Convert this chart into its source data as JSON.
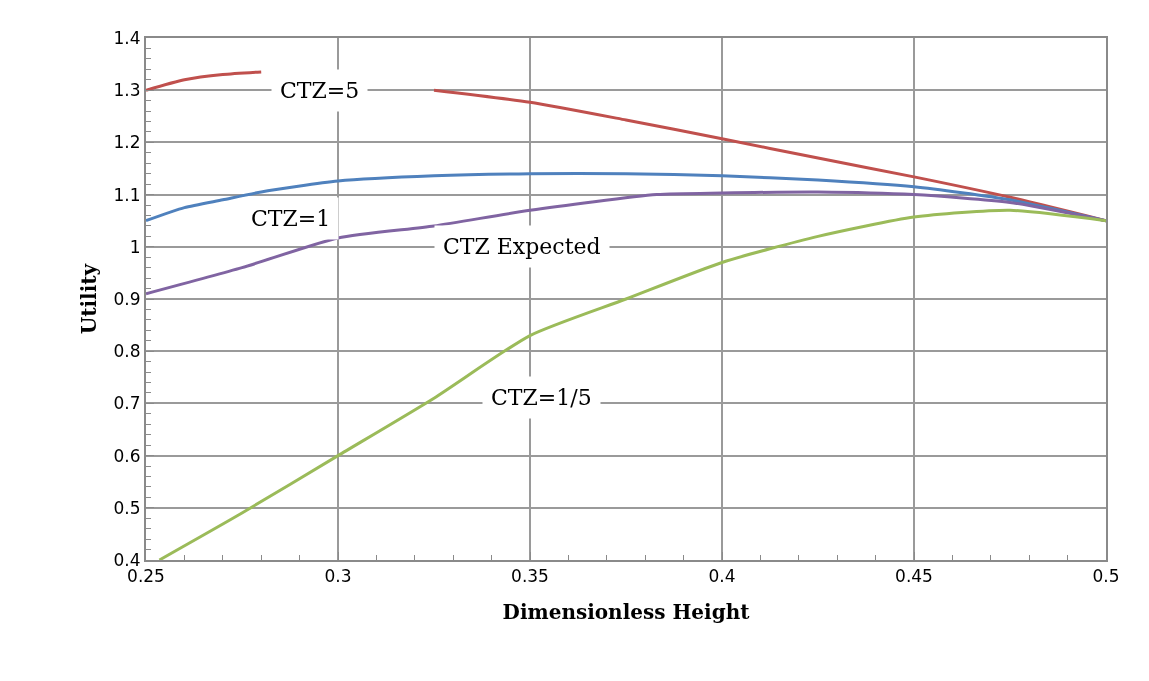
{
  "chart_data": {
    "type": "line",
    "xlabel": "Dimensionless Height",
    "ylabel": "Utility",
    "xlim": [
      0.25,
      0.5
    ],
    "xticks": [
      0.25,
      0.3,
      0.35,
      0.4,
      0.45,
      0.5
    ],
    "ylim": [
      0.4,
      1.4
    ],
    "yticks": [
      0.4,
      {
        "value": 0.5,
        "label": "0.5"
      },
      0.6,
      0.7,
      0.8,
      0.9,
      {
        "value": 1,
        "label": "1"
      },
      1.1,
      1.2,
      1.3,
      1.4
    ],
    "grid": true,
    "legend": false,
    "marker": "none",
    "line_style": "solid",
    "series": [
      {
        "name": "CTZ=5",
        "color": "#c0504d",
        "x": [
          0.25,
          0.26,
          0.27,
          0.28,
          0.3,
          0.325,
          0.35,
          0.375,
          0.4,
          0.425,
          0.45,
          0.475,
          0.5
        ],
        "values": [
          1.3,
          1.32,
          1.33,
          1.335,
          null,
          1.3,
          1.277,
          1.243,
          1.207,
          1.17,
          1.134,
          1.095,
          1.05
        ]
      },
      {
        "name": "CTZ=1",
        "color": "#4f81bd",
        "x": [
          0.25,
          0.26,
          0.27,
          0.28,
          0.3,
          0.325,
          0.35,
          0.375,
          0.4,
          0.425,
          0.45,
          0.475,
          0.5
        ],
        "values": [
          1.05,
          1.075,
          1.09,
          1.105,
          1.126,
          1.136,
          1.14,
          1.14,
          1.136,
          1.128,
          1.115,
          1.09,
          1.05
        ]
      },
      {
        "name": "CTZ Expected",
        "color": "#8064a2",
        "x": [
          0.25,
          0.275,
          0.3,
          0.325,
          0.35,
          0.383,
          0.4,
          0.425,
          0.45,
          0.475,
          0.5
        ],
        "values": [
          0.91,
          0.96,
          1.017,
          1.04,
          1.07,
          1.1,
          1.103,
          1.105,
          1.1,
          1.085,
          1.05
        ]
      },
      {
        "name": "CTZ=1/5",
        "color": "#9bbb59",
        "x": [
          0.2535,
          0.275,
          0.3,
          0.325,
          0.35,
          0.375,
          0.4,
          0.425,
          0.45,
          0.475,
          0.5
        ],
        "values": [
          0.4,
          0.49,
          0.6,
          0.71,
          0.83,
          0.9,
          0.97,
          1.02,
          1.057,
          1.07,
          1.05
        ]
      }
    ]
  }
}
